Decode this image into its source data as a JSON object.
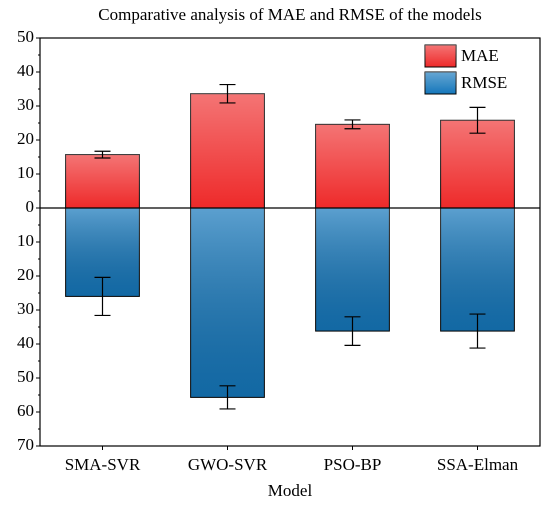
{
  "chart_data": {
    "type": "bar",
    "title": "Comparative analysis of MAE and RMSE of the models",
    "x_label": "Model",
    "categories": [
      "SMA-SVR",
      "GWO-SVR",
      "PSO-BP",
      "SSA-Elman"
    ],
    "series": [
      {
        "name": "MAE",
        "color": "#ee2a2a",
        "values": [
          15.7,
          33.6,
          24.6,
          25.8
        ],
        "errors": [
          1.0,
          2.7,
          1.3,
          3.8
        ]
      },
      {
        "name": "RMSE",
        "color": "#1577bb",
        "values": [
          -26.0,
          -55.7,
          -36.2,
          -36.2
        ],
        "errors": [
          5.6,
          3.4,
          4.2,
          5.0
        ]
      }
    ],
    "ylim": [
      -70,
      50
    ],
    "yticks": [
      50,
      40,
      30,
      20,
      10,
      0,
      {
        "value": -10,
        "label": "10"
      },
      {
        "value": -20,
        "label": "20"
      },
      {
        "value": -30,
        "label": "30"
      },
      {
        "value": -40,
        "label": "40"
      },
      {
        "value": -50,
        "label": "50"
      },
      {
        "value": -60,
        "label": "60"
      },
      {
        "value": -70,
        "label": "70"
      }
    ],
    "legend": "top-right"
  }
}
